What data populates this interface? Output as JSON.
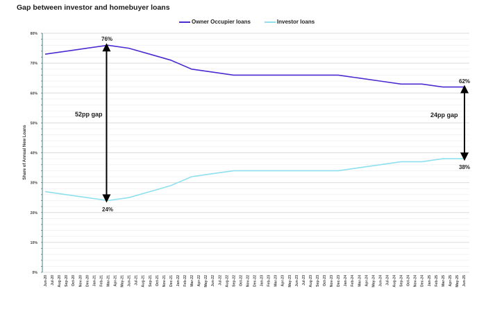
{
  "title": "Gap between investor and homebuyer loans",
  "legend": [
    {
      "label": "Owner Occupier loans",
      "color": "#4B2BD0"
    },
    {
      "label": "Investor loans",
      "color": "#8EE0EE"
    }
  ],
  "colors": {
    "owner": "#4B2BD0",
    "investor": "#8EE0EE",
    "axis": "#4a7c8c",
    "grid": "#e4e4e4",
    "arrow": "#000000"
  },
  "annotations": {
    "left_gap": "52pp gap",
    "right_gap": "24pp gap",
    "peak_owner": "76%",
    "low_investor": "24%",
    "end_owner": "62%",
    "end_investor": "38%"
  },
  "chart_data": {
    "type": "line",
    "title": "Gap between investor and homebuyer loans",
    "xlabel": "",
    "ylabel": "Share of Annual New Loans",
    "ylim": [
      0,
      80
    ],
    "yticks": [
      "0%",
      "10%",
      "20%",
      "30%",
      "40%",
      "50%",
      "60%",
      "70%",
      "80%"
    ],
    "grid": true,
    "legend_position": "top",
    "x": [
      "Jun-20",
      "Jul-20",
      "Aug-20",
      "Sep-20",
      "Oct-20",
      "Nov-20",
      "Dec-20",
      "Jan-21",
      "Feb-21",
      "Mar-21",
      "Apr-21",
      "May-21",
      "Jun-21",
      "Jul-21",
      "Aug-21",
      "Sep-21",
      "Oct-21",
      "Nov-21",
      "Dec-21",
      "Jan-22",
      "Feb-22",
      "Mar-22",
      "Apr-22",
      "May-22",
      "Jun-22",
      "Jul-22",
      "Aug-22",
      "Sep-22",
      "Oct-22",
      "Nov-22",
      "Dec-22",
      "Jan-23",
      "Feb-23",
      "Mar-23",
      "Apr-23",
      "May-23",
      "Jun-23",
      "Jul-23",
      "Aug-23",
      "Sep-23",
      "Oct-23",
      "Nov-23",
      "Dec-23",
      "Jan-24",
      "Feb-24",
      "Mar-24",
      "Apr-24",
      "May-24",
      "Jun-24",
      "Jul-24",
      "Aug-24",
      "Sep-24",
      "Oct-24",
      "Nov-24",
      "Dec-24",
      "Jan-25",
      "Feb-25",
      "Mar-25",
      "Apr-25",
      "May-25",
      "Jun-25"
    ],
    "quarterly_points": [
      "Jun-20",
      "Sep-20",
      "Dec-20",
      "Mar-21",
      "Jun-21",
      "Sep-21",
      "Dec-21",
      "Mar-22",
      "Jun-22",
      "Sep-22",
      "Dec-22",
      "Mar-23",
      "Jun-23",
      "Sep-23",
      "Dec-23",
      "Mar-24",
      "Jun-24",
      "Sep-24",
      "Dec-24",
      "Mar-25",
      "Jun-25"
    ],
    "series": [
      {
        "name": "Owner Occupier loans",
        "values": [
          73,
          74,
          75,
          76,
          75,
          73,
          71,
          68,
          67,
          66,
          66,
          66,
          66,
          66,
          66,
          65,
          64,
          63,
          63,
          62,
          62
        ]
      },
      {
        "name": "Investor loans",
        "values": [
          27,
          26,
          25,
          24,
          25,
          27,
          29,
          32,
          33,
          34,
          34,
          34,
          34,
          34,
          34,
          35,
          36,
          37,
          37,
          38,
          38
        ]
      }
    ],
    "annotations": [
      {
        "text": "52pp gap",
        "at": "Mar-21",
        "from": 76,
        "to": 24
      },
      {
        "text": "24pp gap",
        "at": "Jun-25",
        "from": 62,
        "to": 38
      }
    ]
  }
}
